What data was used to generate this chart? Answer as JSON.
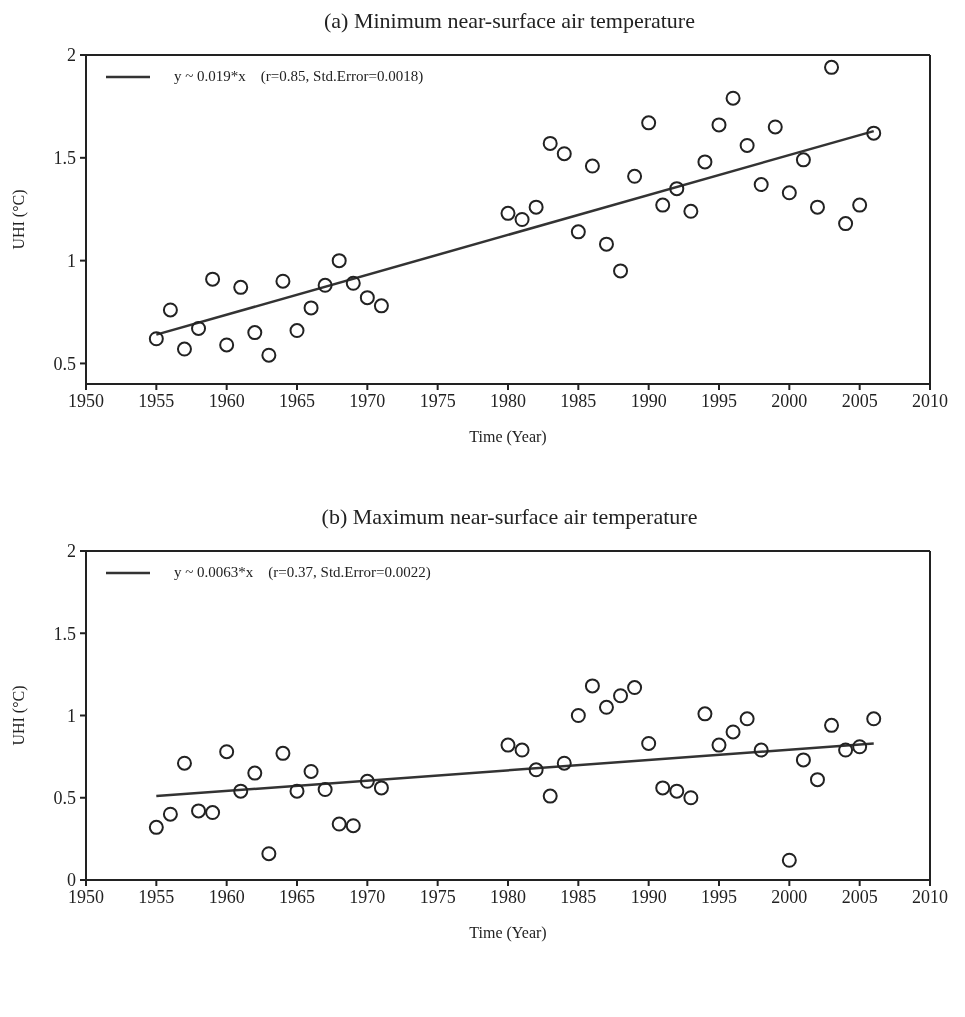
{
  "chart_data": [
    {
      "type": "scatter",
      "title": "(a) Minimum near-surface air temperature",
      "xlabel": "Time (Year)",
      "ylabel": "UHI (°C)",
      "xlim": [
        1950,
        2010
      ],
      "xticks": [
        1950,
        1955,
        1960,
        1965,
        1970,
        1975,
        1980,
        1985,
        1990,
        1995,
        2000,
        2005,
        2010
      ],
      "ylim": [
        0.4,
        2
      ],
      "yticks": [
        0.5,
        1,
        1.5,
        2
      ],
      "legend": "top left",
      "series": [
        {
          "marker": "circle",
          "color": "#222222",
          "x": [
            1955,
            1956,
            1957,
            1958,
            1959,
            1960,
            1961,
            1962,
            1963,
            1964,
            1965,
            1966,
            1967,
            1968,
            1969,
            1970,
            1971,
            1980,
            1981,
            1982,
            1983,
            1984,
            1985,
            1986,
            1987,
            1988,
            1989,
            1990,
            1991,
            1992,
            1993,
            1994,
            1995,
            1996,
            1997,
            1998,
            1999,
            2000,
            2001,
            2002,
            2003,
            2004,
            2005,
            2006
          ],
          "values": [
            0.62,
            0.76,
            0.57,
            0.67,
            0.91,
            0.59,
            0.87,
            0.65,
            0.54,
            0.9,
            0.66,
            0.77,
            0.88,
            1.0,
            0.89,
            0.82,
            0.78,
            1.23,
            1.2,
            1.26,
            1.57,
            1.52,
            1.14,
            1.46,
            1.08,
            0.95,
            1.41,
            1.67,
            1.27,
            1.35,
            1.24,
            1.48,
            1.66,
            1.79,
            1.56,
            1.37,
            1.65,
            1.33,
            1.49,
            1.26,
            1.94,
            1.18,
            1.27,
            1.62
          ]
        },
        {
          "type": "line",
          "name": "y ~ 0.019*x    (r=0.85, Std.Error=0.0018)",
          "color": "#333333",
          "x": [
            1955,
            2006
          ],
          "values": [
            0.64,
            1.63
          ]
        }
      ]
    },
    {
      "type": "scatter",
      "title": "(b) Maximum near-surface air temperature",
      "xlabel": "Time (Year)",
      "ylabel": "UHI (°C)",
      "xlim": [
        1950,
        2010
      ],
      "xticks": [
        1950,
        1955,
        1960,
        1965,
        1970,
        1975,
        1980,
        1985,
        1990,
        1995,
        2000,
        2005,
        2010
      ],
      "ylim": [
        0,
        2
      ],
      "yticks": [
        0,
        0.5,
        1,
        1.5,
        2
      ],
      "legend": "top left",
      "series": [
        {
          "marker": "circle",
          "color": "#222222",
          "x": [
            1955,
            1956,
            1957,
            1958,
            1959,
            1960,
            1961,
            1962,
            1963,
            1964,
            1965,
            1966,
            1967,
            1968,
            1969,
            1970,
            1971,
            1980,
            1981,
            1982,
            1983,
            1984,
            1985,
            1986,
            1987,
            1988,
            1989,
            1990,
            1991,
            1992,
            1993,
            1994,
            1995,
            1996,
            1997,
            1998,
            2000,
            2001,
            2002,
            2003,
            2004,
            2005,
            2006
          ],
          "values": [
            0.32,
            0.4,
            0.71,
            0.42,
            0.41,
            0.78,
            0.54,
            0.65,
            0.16,
            0.77,
            0.54,
            0.66,
            0.55,
            0.34,
            0.33,
            0.6,
            0.56,
            0.82,
            0.79,
            0.67,
            0.51,
            0.71,
            1.0,
            1.18,
            1.05,
            1.12,
            1.17,
            0.83,
            0.56,
            0.54,
            0.5,
            1.01,
            0.82,
            0.9,
            0.98,
            0.79,
            0.12,
            0.73,
            0.61,
            0.94,
            0.79,
            0.81,
            0.98
          ]
        },
        {
          "type": "line",
          "name": "y ~ 0.0063*x    (r=0.37, Std.Error=0.0022)",
          "color": "#333333",
          "x": [
            1955,
            2006
          ],
          "values": [
            0.51,
            0.83
          ]
        }
      ]
    }
  ]
}
